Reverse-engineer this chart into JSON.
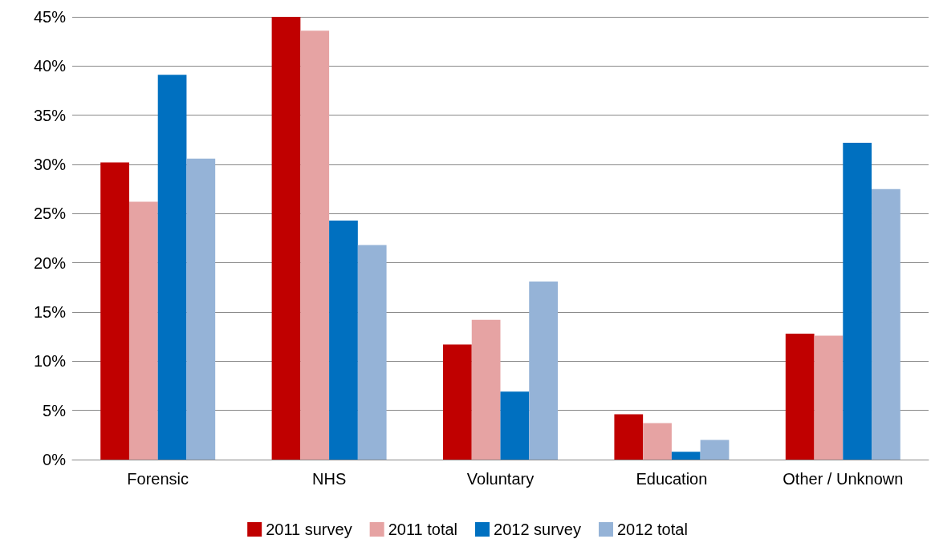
{
  "chart_data": {
    "type": "bar",
    "categories": [
      "Forensic",
      "NHS",
      "Voluntary",
      "Education",
      "Other / Unknown"
    ],
    "series": [
      {
        "name": "2011 survey",
        "color": "#c00000",
        "values": [
          30.2,
          45,
          11.7,
          4.6,
          12.8
        ]
      },
      {
        "name": "2011 total",
        "color": "#e6a3a3",
        "values": [
          26.2,
          43.6,
          14.2,
          3.7,
          12.6
        ]
      },
      {
        "name": "2012 survey",
        "color": "#0070c0",
        "values": [
          39.1,
          24.3,
          6.9,
          0.8,
          32.2
        ]
      },
      {
        "name": "2012 total",
        "color": "#95b3d7",
        "values": [
          30.6,
          21.8,
          18.1,
          2.0,
          27.5
        ]
      }
    ],
    "ylim": [
      0,
      45
    ],
    "yticks": [
      {
        "value": 0,
        "label": "0%"
      },
      {
        "value": 5,
        "label": "5%"
      },
      {
        "value": 10,
        "label": "10%"
      },
      {
        "value": 15,
        "label": "15%"
      },
      {
        "value": 20,
        "label": "20%"
      },
      {
        "value": 25,
        "label": "25%"
      },
      {
        "value": 30,
        "label": "30%"
      },
      {
        "value": 35,
        "label": "35%"
      },
      {
        "value": 40,
        "label": "40%"
      },
      {
        "value": 45,
        "label": "45%"
      }
    ],
    "grid": "y",
    "legend": "bottom"
  }
}
